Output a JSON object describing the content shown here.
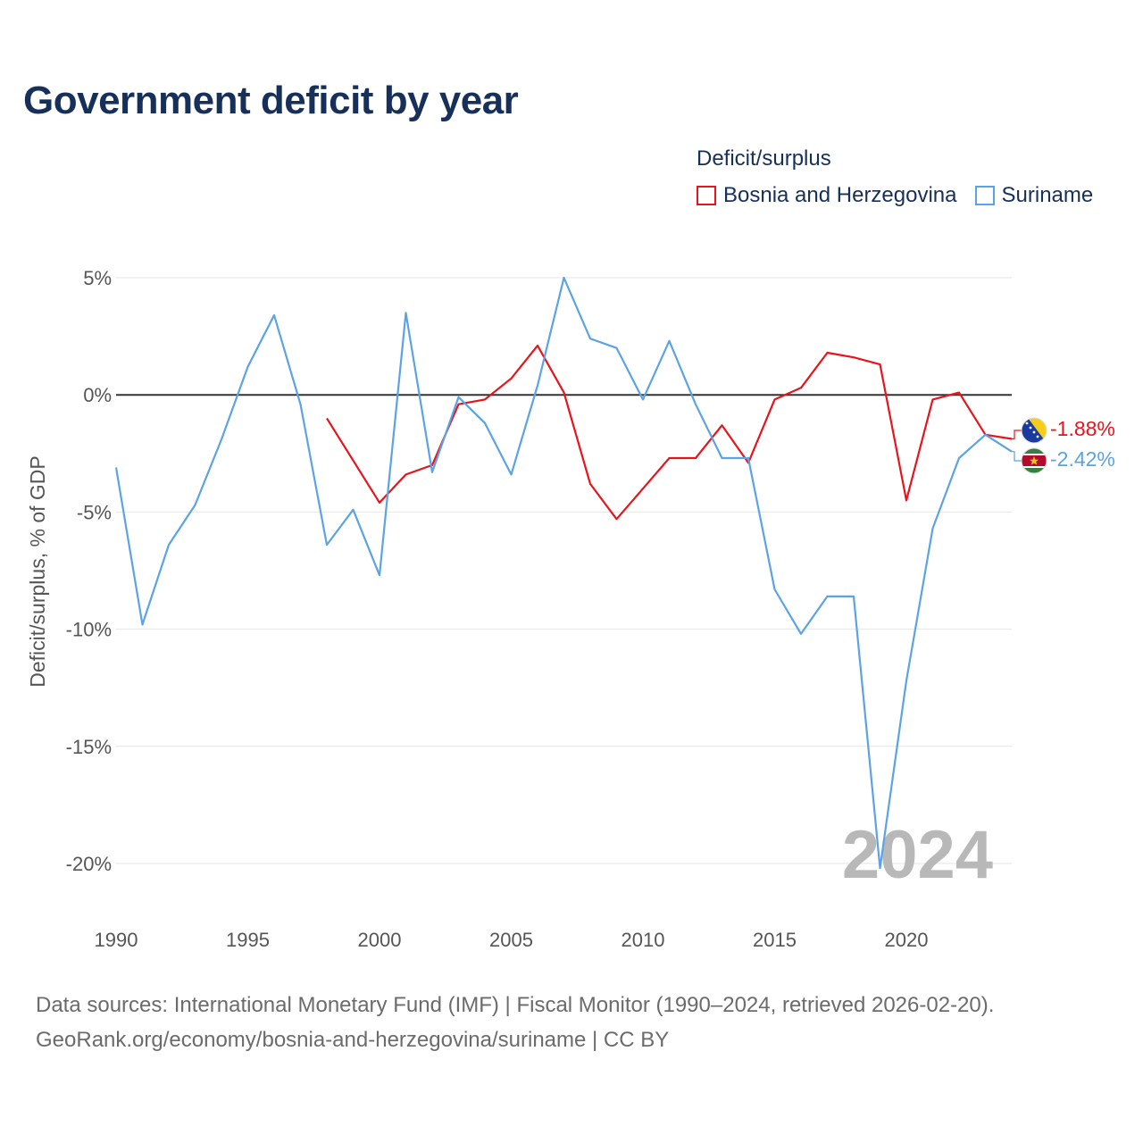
{
  "title": "Government deficit by year",
  "legend": {
    "title": "Deficit/surplus",
    "items": [
      {
        "label": "Bosnia and Herzegovina",
        "color": "#e8141b"
      },
      {
        "label": "Suriname",
        "color": "#5ba3e4"
      }
    ]
  },
  "footer": {
    "line1": "Data sources: International Monetary Fund (IMF) | Fiscal Monitor (1990–2024, retrieved 2026-02-20).",
    "line2": "GeoRank.org/economy/bosnia-and-herzegovina/suriname | CC BY"
  },
  "current_year": "2024",
  "chart_data": {
    "type": "line",
    "title": "Government deficit by year",
    "xlabel": "",
    "ylabel": "Deficit/surplus, % of GDP",
    "xlim": [
      1990,
      2024
    ],
    "ylim": [
      -20,
      5
    ],
    "x_ticks": [
      1990,
      1995,
      2000,
      2005,
      2010,
      2015,
      2020
    ],
    "x_tick_labels": [
      "1990",
      "1995",
      "2000",
      "2005",
      "2010",
      "2015",
      "2020"
    ],
    "y_ticks": [
      5,
      0,
      -5,
      -10,
      -15,
      -20
    ],
    "y_tick_labels": [
      "5%",
      "0%",
      "-5%",
      "-10%",
      "-15%",
      "-20%"
    ],
    "grid": true,
    "zero_line": true,
    "series": [
      {
        "name": "Bosnia and Herzegovina",
        "color": "#e8141b",
        "end_label": "-1.88%",
        "flag": "bosnia-and-herzegovina-flag",
        "x": [
          1998,
          1999,
          2000,
          2001,
          2002,
          2003,
          2004,
          2005,
          2006,
          2007,
          2008,
          2009,
          2010,
          2011,
          2012,
          2013,
          2014,
          2015,
          2016,
          2017,
          2018,
          2019,
          2020,
          2021,
          2022,
          2023,
          2024
        ],
        "values": [
          -1.0,
          -2.8,
          -4.6,
          -3.4,
          -3.0,
          -0.4,
          -0.2,
          0.7,
          2.1,
          0.1,
          -3.8,
          -5.3,
          -4.0,
          -2.7,
          -2.7,
          -1.3,
          -2.9,
          -0.2,
          0.3,
          1.8,
          1.6,
          1.3,
          -4.5,
          -0.2,
          0.1,
          -1.7,
          -1.88
        ]
      },
      {
        "name": "Suriname",
        "color": "#5ba3e4",
        "end_label": "-2.42%",
        "flag": "suriname-flag",
        "x": [
          1990,
          1991,
          1992,
          1993,
          1994,
          1995,
          1996,
          1997,
          1998,
          1999,
          2000,
          2001,
          2002,
          2003,
          2004,
          2005,
          2006,
          2007,
          2008,
          2009,
          2010,
          2011,
          2012,
          2013,
          2014,
          2015,
          2016,
          2017,
          2018,
          2019,
          2020,
          2021,
          2022,
          2023,
          2024
        ],
        "values": [
          -3.1,
          -9.8,
          -6.4,
          -4.7,
          -1.9,
          1.2,
          3.4,
          -0.4,
          -6.4,
          -4.9,
          -7.7,
          3.5,
          -3.3,
          -0.1,
          -1.2,
          -3.4,
          0.4,
          5.0,
          2.4,
          2.0,
          -0.2,
          2.3,
          -0.4,
          -2.7,
          -2.7,
          -8.3,
          -10.2,
          -8.6,
          -8.6,
          -20.2,
          -12.2,
          -5.7,
          -2.7,
          -1.7,
          -2.42
        ]
      }
    ]
  }
}
